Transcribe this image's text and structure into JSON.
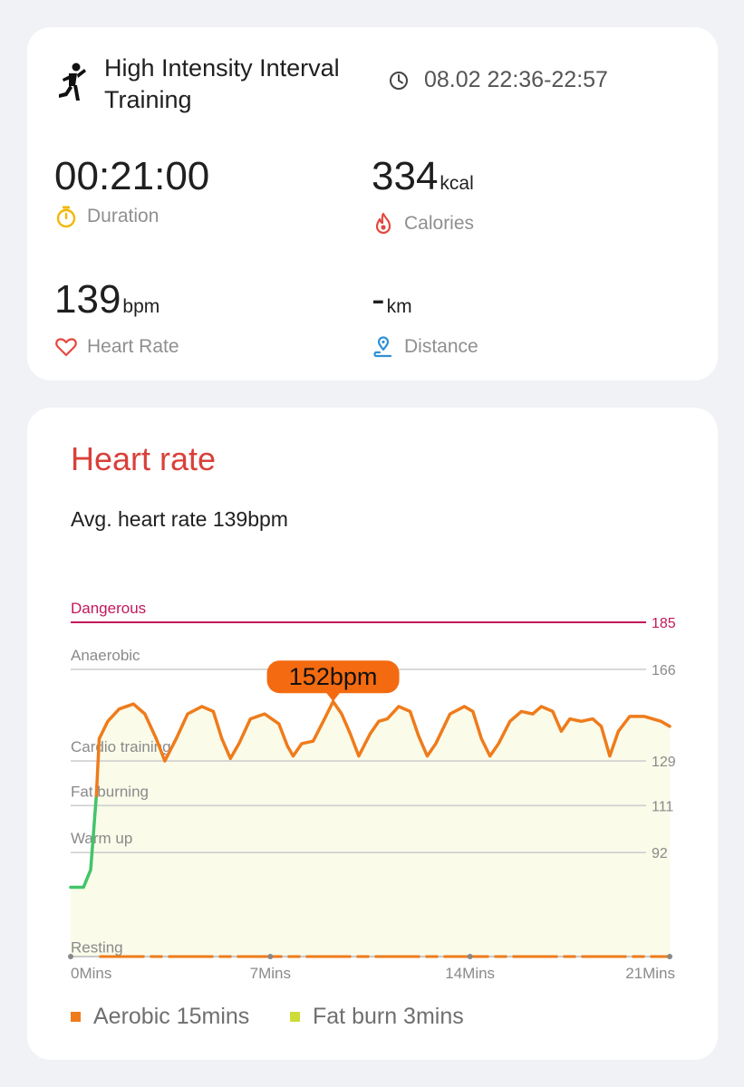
{
  "workout": {
    "name": "High Intensity Interval Training",
    "time_range": "08.02 22:36-22:57"
  },
  "metrics": {
    "duration": {
      "value": "00:21:00",
      "label": "Duration"
    },
    "calories": {
      "value": "334",
      "unit": "kcal",
      "label": "Calories"
    },
    "heart_rate": {
      "value": "139",
      "unit": "bpm",
      "label": "Heart Rate"
    },
    "distance": {
      "value": "-",
      "unit": "km",
      "label": "Distance"
    }
  },
  "heart_rate_section": {
    "title": "Heart rate",
    "avg_text": "Avg. heart rate 139bpm"
  },
  "colors": {
    "accent": "#d9403a",
    "line_orange": "#ef7b1b",
    "warmup_green": "#43c46a",
    "dangerous": "#c2185b",
    "fat_burn": "#cddc39",
    "fill": "#fafbe9"
  },
  "chart_data": {
    "type": "line",
    "x_unit": "minutes",
    "y_unit": "bpm",
    "xlim": [
      0,
      21
    ],
    "ylim": [
      50,
      185
    ],
    "x_ticks": [
      "0Mins",
      "7Mins",
      "14Mins",
      "21Mins"
    ],
    "zones": [
      {
        "name": "Dangerous",
        "threshold": 185
      },
      {
        "name": "Anaerobic",
        "threshold": 166
      },
      {
        "name": "Cardio training",
        "threshold": 129
      },
      {
        "name": "Fat burning",
        "threshold": 111
      },
      {
        "name": "Warm up",
        "threshold": 92
      },
      {
        "name": "Resting",
        "threshold": 50
      }
    ],
    "threshold_labels": [
      "185",
      "166",
      "129",
      "111",
      "92"
    ],
    "peak": {
      "x": 9.2,
      "y": 152,
      "label": "152bpm"
    },
    "series": [
      {
        "values": [
          [
            0,
            78
          ],
          [
            0.45,
            78
          ],
          [
            0.7,
            85
          ],
          [
            0.9,
            115
          ],
          [
            1.0,
            138
          ],
          [
            1.3,
            145
          ],
          [
            1.7,
            150
          ],
          [
            2.2,
            152
          ],
          [
            2.6,
            148
          ],
          [
            3.0,
            138
          ],
          [
            3.3,
            129
          ],
          [
            3.7,
            138
          ],
          [
            4.1,
            148
          ],
          [
            4.6,
            151
          ],
          [
            5.0,
            149
          ],
          [
            5.3,
            138
          ],
          [
            5.6,
            130
          ],
          [
            5.9,
            136
          ],
          [
            6.3,
            146
          ],
          [
            6.8,
            148
          ],
          [
            7.3,
            144
          ],
          [
            7.6,
            135
          ],
          [
            7.8,
            131
          ],
          [
            8.1,
            136
          ],
          [
            8.5,
            137
          ],
          [
            8.9,
            146
          ],
          [
            9.2,
            153
          ],
          [
            9.5,
            148
          ],
          [
            9.8,
            140
          ],
          [
            10.1,
            131
          ],
          [
            10.5,
            140
          ],
          [
            10.8,
            145
          ],
          [
            11.1,
            146
          ],
          [
            11.5,
            151
          ],
          [
            11.9,
            149
          ],
          [
            12.2,
            139
          ],
          [
            12.5,
            131
          ],
          [
            12.8,
            136
          ],
          [
            13.3,
            148
          ],
          [
            13.8,
            151
          ],
          [
            14.1,
            149
          ],
          [
            14.4,
            138
          ],
          [
            14.7,
            131
          ],
          [
            15.0,
            136
          ],
          [
            15.4,
            145
          ],
          [
            15.8,
            149
          ],
          [
            16.2,
            148
          ],
          [
            16.5,
            151
          ],
          [
            16.9,
            149
          ],
          [
            17.2,
            141
          ],
          [
            17.5,
            146
          ],
          [
            17.9,
            145
          ],
          [
            18.3,
            146
          ],
          [
            18.6,
            143
          ],
          [
            18.9,
            131
          ],
          [
            19.2,
            141
          ],
          [
            19.6,
            147
          ],
          [
            20.1,
            147
          ],
          [
            20.4,
            146
          ],
          [
            20.7,
            145
          ],
          [
            21.0,
            143
          ]
        ]
      }
    ]
  },
  "legend": [
    {
      "label": "Aerobic 15mins",
      "color": "#ef7b1b"
    },
    {
      "label": "Fat burn 3mins",
      "color": "#cddc39"
    }
  ]
}
